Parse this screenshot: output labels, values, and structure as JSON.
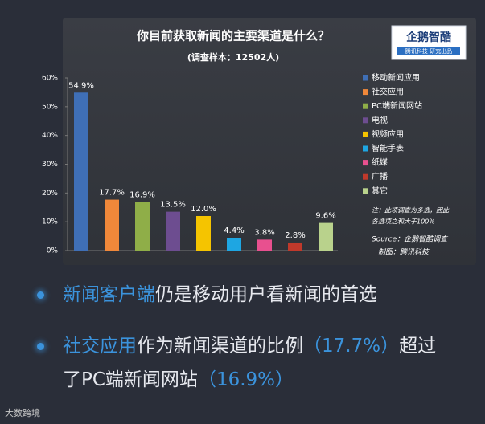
{
  "chart_data": {
    "type": "bar",
    "title": "你目前获取新闻的主要渠道是什么？",
    "subtitle": "(调查样本：12502人)",
    "categories": [
      "移动新闻应用",
      "社交应用",
      "PC端新闻网站",
      "电视",
      "视频应用",
      "智能手表",
      "纸媒",
      "广播",
      "其它"
    ],
    "values": [
      54.9,
      17.7,
      16.9,
      13.5,
      12.0,
      4.4,
      3.8,
      2.8,
      9.6
    ],
    "value_labels": [
      "54.9%",
      "17.7%",
      "16.9%",
      "13.5%",
      "12.0%",
      "4.4%",
      "3.8%",
      "2.8%",
      "9.6%"
    ],
    "colors": [
      "#3f6fb6",
      "#f0883a",
      "#8fae48",
      "#6d4d90",
      "#f5c400",
      "#1ea6e2",
      "#e8508f",
      "#c0392b",
      "#b9d28c"
    ],
    "ylim": [
      0,
      60
    ],
    "yticks": [
      {
        "value": 0,
        "label": "0%"
      },
      {
        "value": 10,
        "label": "10%"
      },
      {
        "value": 20,
        "label": "20%"
      },
      {
        "value": 30,
        "label": "30%"
      },
      {
        "value": 40,
        "label": "40%"
      },
      {
        "value": 50,
        "label": "50%"
      },
      {
        "value": 60,
        "label": "60%"
      }
    ],
    "note": [
      "注：此项调查为多选，因此",
      "各选项之和大于100%"
    ],
    "source": "Source：企鹅智酷调查",
    "credit": "制图：腾讯科技",
    "logo": {
      "title": "企鹅智酷",
      "subtitle": "腾讯科技 研究出品"
    }
  },
  "bullets": [
    {
      "parts": [
        {
          "text": "新闻客户端",
          "highlight": true
        },
        {
          "text": "仍是移动用户看新闻的首选",
          "highlight": false
        }
      ]
    },
    {
      "parts": [
        {
          "text": "社交应用",
          "highlight": true
        },
        {
          "text": "作为新闻渠道的比例",
          "highlight": false
        },
        {
          "text": "（17.7%）",
          "highlight": true
        },
        {
          "text": "超过了PC端新闻网站",
          "highlight": false
        },
        {
          "text": "（16.9%）",
          "highlight": true
        }
      ]
    }
  ],
  "watermark": "大数跨境"
}
